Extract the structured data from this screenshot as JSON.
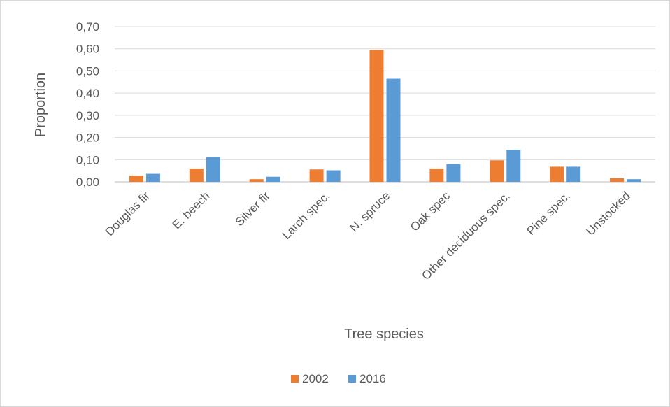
{
  "chart_data": {
    "type": "bar",
    "xlabel": "Tree species",
    "ylabel": "Proportion",
    "ylim": [
      0,
      0.7
    ],
    "ytick_step": 0.1,
    "ytick_labels": [
      "0,00",
      "0,10",
      "0,20",
      "0,30",
      "0,40",
      "0,50",
      "0,60",
      "0,70"
    ],
    "grid": true,
    "legend_position": "bottom",
    "categories": [
      "Douglas fir",
      "E. beech",
      "Silver fir",
      "Larch spec.",
      "N. spruce",
      "Oak spec",
      "Other deciduous spec.",
      "Pine spec.",
      "Unstocked"
    ],
    "series": [
      {
        "name": "2002",
        "color": "#ed7d31",
        "values": [
          0.028,
          0.06,
          0.012,
          0.056,
          0.595,
          0.06,
          0.097,
          0.068,
          0.016
        ]
      },
      {
        "name": "2016",
        "color": "#5b9bd5",
        "values": [
          0.036,
          0.112,
          0.023,
          0.052,
          0.465,
          0.08,
          0.145,
          0.068,
          0.012
        ]
      }
    ]
  }
}
